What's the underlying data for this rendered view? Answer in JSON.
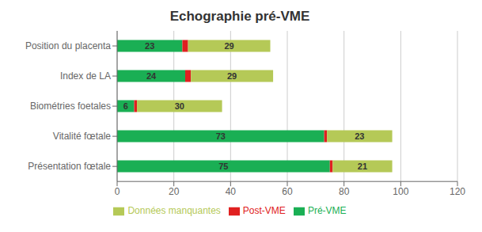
{
  "chart_data": {
    "type": "bar",
    "title": "Echographie pré-VME",
    "orientation": "horizontal",
    "stacked": true,
    "categories": [
      "Présentation fœtale",
      "Vitalité fœtale",
      "Biométries foetales",
      "Index de LA",
      "Position du placenta"
    ],
    "series": [
      {
        "name": "Pré-VME",
        "color": "#1aaf54",
        "values": [
          75,
          73,
          6,
          24,
          23
        ],
        "data_labels": true
      },
      {
        "name": "Post-VME",
        "color": "#e02020",
        "values": [
          1,
          1,
          1,
          2,
          2
        ],
        "data_labels": false
      },
      {
        "name": "Données manquantes",
        "color": "#b5c957",
        "values": [
          21,
          23,
          30,
          29,
          29
        ],
        "data_labels": true
      }
    ],
    "xlim": [
      0,
      120
    ],
    "xticks": [
      0,
      20,
      40,
      60,
      80,
      100,
      120
    ],
    "grid": true,
    "legend": "bottom"
  }
}
